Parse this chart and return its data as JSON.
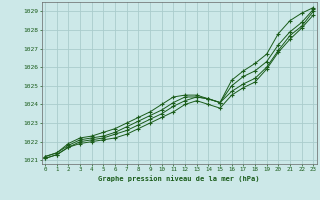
{
  "title": "Graphe pression niveau de la mer (hPa)",
  "bg_color": "#cce8e8",
  "grid_color": "#aacccc",
  "line_color": "#1a5c1a",
  "marker_color": "#1a5c1a",
  "xlim": [
    -0.3,
    23.3
  ],
  "ylim": [
    1020.8,
    1029.5
  ],
  "yticks": [
    1021,
    1022,
    1023,
    1024,
    1025,
    1026,
    1027,
    1028,
    1029
  ],
  "xticks": [
    0,
    1,
    2,
    3,
    4,
    5,
    6,
    7,
    8,
    9,
    10,
    11,
    12,
    13,
    14,
    15,
    16,
    17,
    18,
    19,
    20,
    21,
    22,
    23
  ],
  "series": [
    [
      1021.1,
      1021.3,
      1021.7,
      1021.9,
      1022.0,
      1022.1,
      1022.2,
      1022.4,
      1022.7,
      1023.0,
      1023.3,
      1023.6,
      1024.0,
      1024.2,
      1024.0,
      1023.8,
      1024.5,
      1024.9,
      1025.2,
      1025.9,
      1026.8,
      1027.5,
      1028.1,
      1028.8
    ],
    [
      1021.1,
      1021.3,
      1021.7,
      1022.0,
      1022.1,
      1022.2,
      1022.4,
      1022.6,
      1022.9,
      1023.2,
      1023.5,
      1023.9,
      1024.2,
      1024.4,
      1024.3,
      1024.1,
      1024.7,
      1025.1,
      1025.4,
      1026.0,
      1026.9,
      1027.7,
      1028.2,
      1029.0
    ],
    [
      1021.2,
      1021.4,
      1021.8,
      1022.1,
      1022.2,
      1022.3,
      1022.5,
      1022.8,
      1023.1,
      1023.4,
      1023.7,
      1024.1,
      1024.4,
      1024.4,
      1024.3,
      1024.1,
      1025.0,
      1025.5,
      1025.8,
      1026.3,
      1027.2,
      1027.9,
      1028.4,
      1029.1
    ],
    [
      1021.2,
      1021.4,
      1021.9,
      1022.2,
      1022.3,
      1022.5,
      1022.7,
      1023.0,
      1023.3,
      1023.6,
      1024.0,
      1024.4,
      1024.5,
      1024.5,
      1024.3,
      1024.1,
      1025.3,
      1025.8,
      1026.2,
      1026.7,
      1027.8,
      1028.5,
      1028.9,
      1029.2
    ]
  ]
}
